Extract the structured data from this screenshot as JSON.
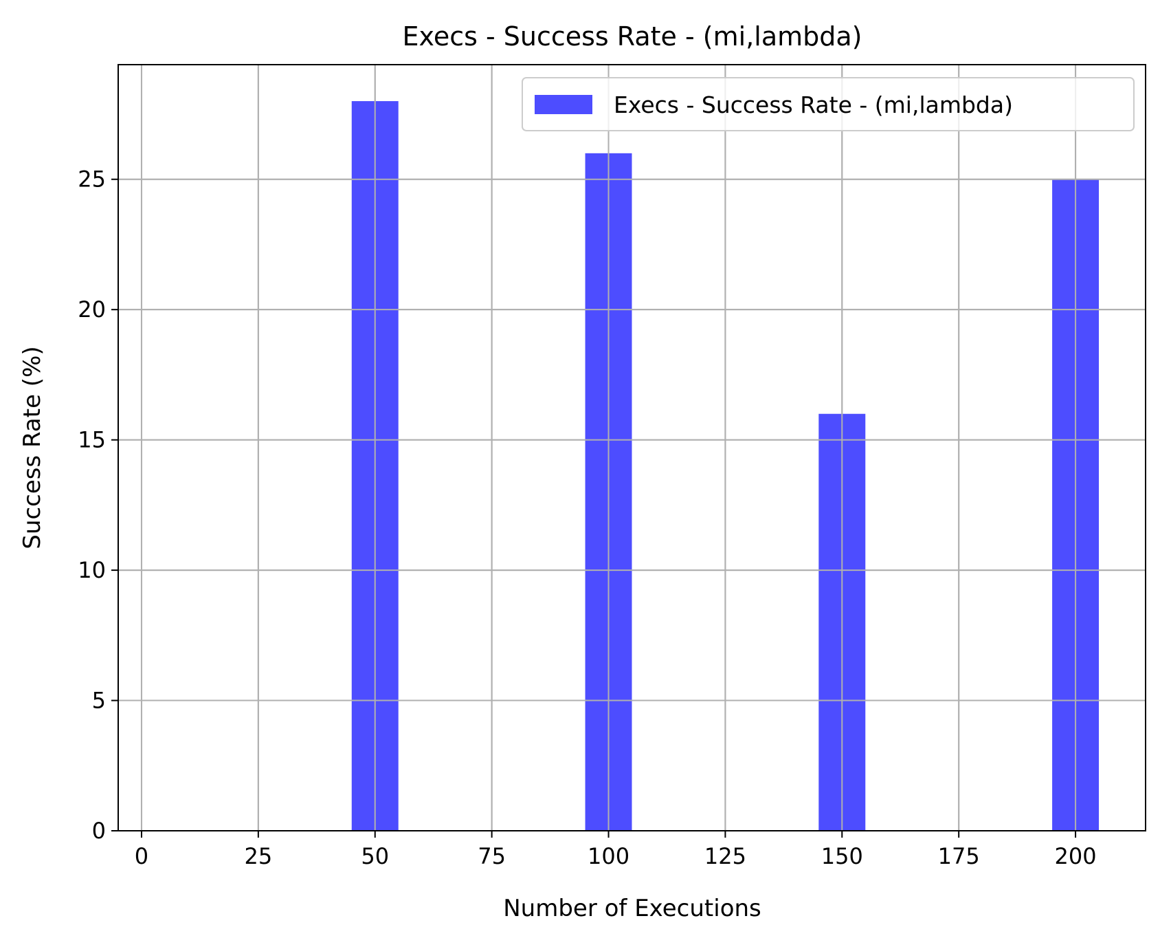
{
  "chart_data": {
    "type": "bar",
    "title": "Execs - Success Rate - (mi,lambda)",
    "xlabel": "Number of Executions",
    "ylabel": "Success Rate (%)",
    "x": [
      50,
      100,
      150,
      200
    ],
    "series": [
      {
        "name": "Execs - Success Rate - (mi,lambda)",
        "values": [
          28,
          26,
          16,
          25
        ],
        "color": "#4d4dff"
      }
    ],
    "bar_width": 10,
    "xlim": [
      -5,
      215
    ],
    "ylim": [
      0,
      29.4
    ],
    "xticks": [
      "0",
      "25",
      "50",
      "75",
      "100",
      "125",
      "150",
      "175",
      "200"
    ],
    "yticks": [
      "0",
      "5",
      "10",
      "15",
      "20",
      "25"
    ],
    "grid": true,
    "legend_position": "top-right"
  }
}
